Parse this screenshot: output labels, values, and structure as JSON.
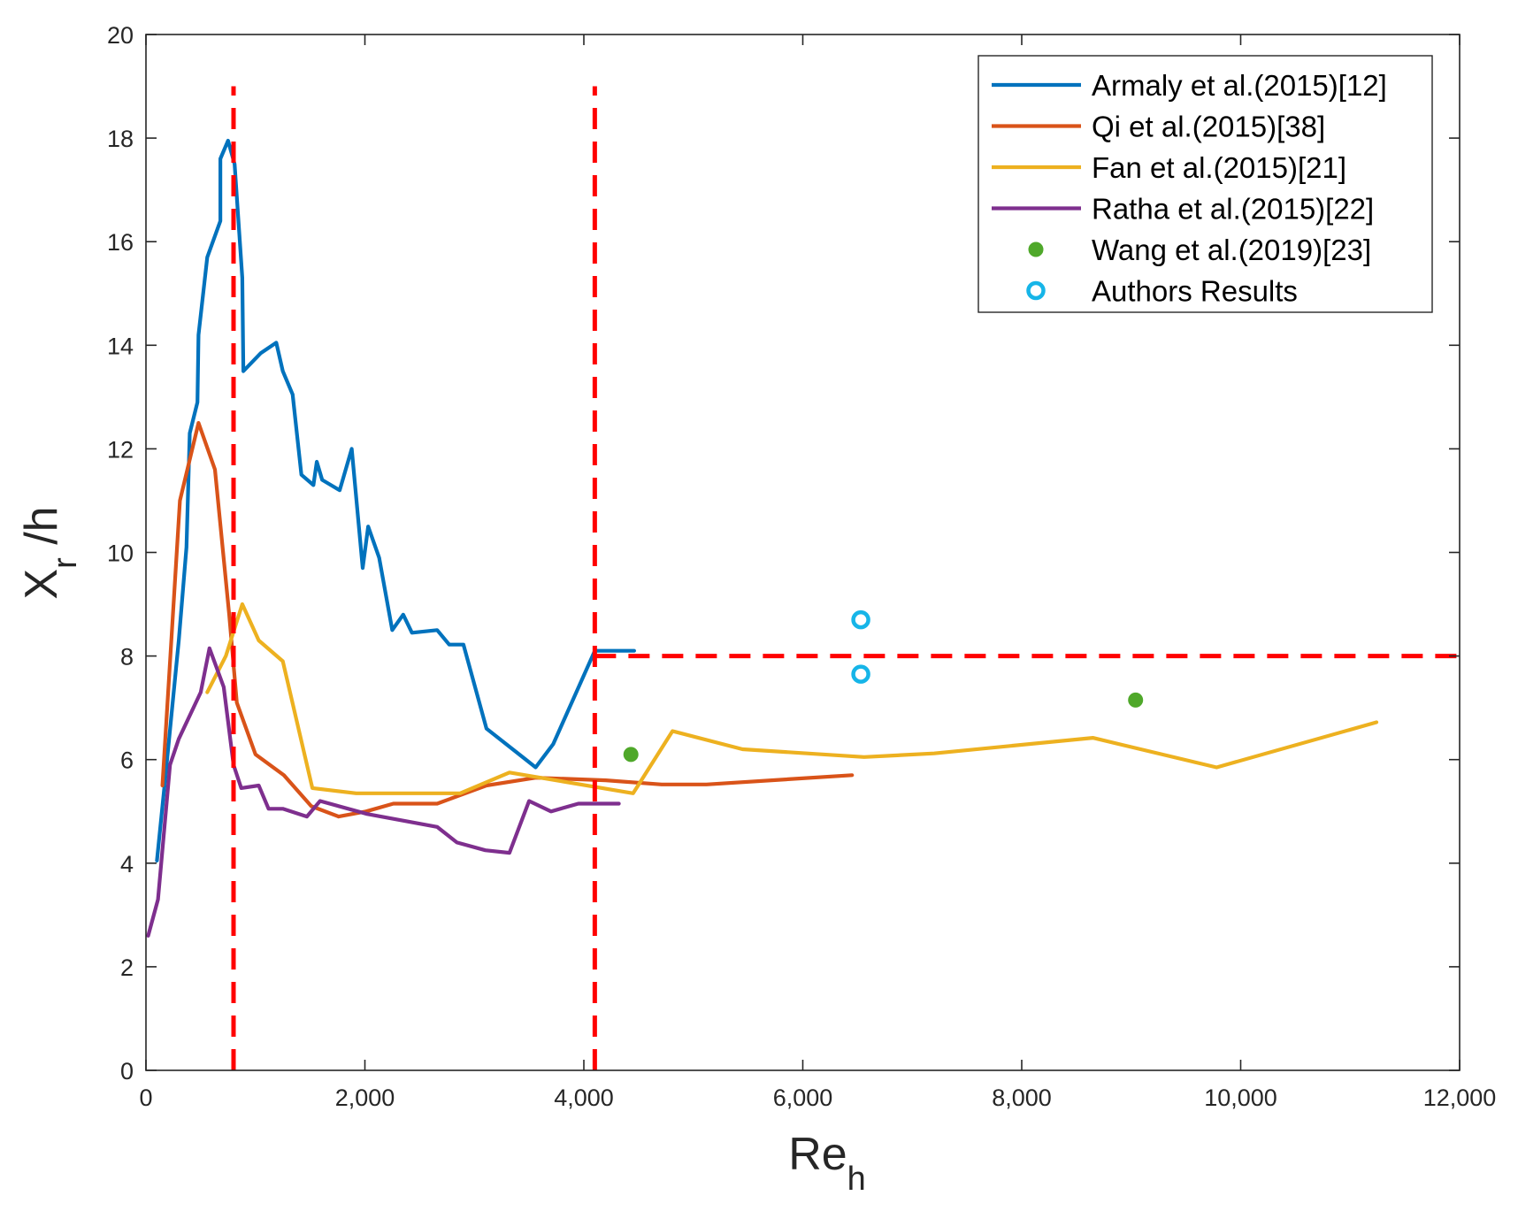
{
  "chart_data": {
    "type": "line",
    "title": "",
    "xlabel": {
      "main": "Re",
      "sub": "h"
    },
    "ylabel": {
      "main": "X",
      "sub": "r",
      "suffix": " /h"
    },
    "xlim": [
      0,
      12000
    ],
    "ylim": [
      0,
      20
    ],
    "xticks": [
      0,
      2000,
      4000,
      6000,
      8000,
      10000,
      12000
    ],
    "xtick_labels": [
      "0",
      "2,000",
      "4,000",
      "6,000",
      "8,000",
      "10,000",
      "12,000"
    ],
    "yticks": [
      0,
      2,
      4,
      6,
      8,
      10,
      12,
      14,
      16,
      18,
      20
    ],
    "ytick_labels": [
      "0",
      "2",
      "4",
      "6",
      "8",
      "10",
      "12",
      "14",
      "16",
      "18",
      "20"
    ],
    "grid": false,
    "legend_position": "top-right",
    "series": [
      {
        "name": "Armaly et al.(2015)[12]",
        "kind": "line",
        "color": "#0072BD",
        "points": [
          [
            100,
            4.05
          ],
          [
            170,
            5.5
          ],
          [
            300,
            8.3
          ],
          [
            370,
            10.1
          ],
          [
            400,
            12.3
          ],
          [
            470,
            12.9
          ],
          [
            480,
            14.2
          ],
          [
            560,
            15.7
          ],
          [
            680,
            16.4
          ],
          [
            680,
            17.6
          ],
          [
            750,
            17.95
          ],
          [
            810,
            17.5
          ],
          [
            880,
            15.3
          ],
          [
            890,
            13.5
          ],
          [
            1050,
            13.85
          ],
          [
            1190,
            14.05
          ],
          [
            1250,
            13.5
          ],
          [
            1340,
            13.05
          ],
          [
            1420,
            11.5
          ],
          [
            1530,
            11.3
          ],
          [
            1560,
            11.75
          ],
          [
            1610,
            11.4
          ],
          [
            1770,
            11.2
          ],
          [
            1880,
            12.0
          ],
          [
            1980,
            9.7
          ],
          [
            2030,
            10.5
          ],
          [
            2130,
            9.9
          ],
          [
            2250,
            8.5
          ],
          [
            2350,
            8.8
          ],
          [
            2430,
            8.45
          ],
          [
            2660,
            8.5
          ],
          [
            2770,
            8.22
          ],
          [
            2900,
            8.22
          ],
          [
            3110,
            6.6
          ],
          [
            3470,
            6.0
          ],
          [
            3560,
            5.85
          ],
          [
            3720,
            6.3
          ],
          [
            4100,
            8.1
          ],
          [
            4460,
            8.1
          ]
        ]
      },
      {
        "name": "Qi et al.(2015)[38]",
        "kind": "line",
        "color": "#D95319",
        "points": [
          [
            150,
            5.5
          ],
          [
            310,
            11.0
          ],
          [
            480,
            12.5
          ],
          [
            630,
            11.6
          ],
          [
            760,
            8.8
          ],
          [
            830,
            7.1
          ],
          [
            1000,
            6.1
          ],
          [
            1260,
            5.7
          ],
          [
            1510,
            5.1
          ],
          [
            1760,
            4.9
          ],
          [
            2010,
            5.0
          ],
          [
            2260,
            5.15
          ],
          [
            2660,
            5.15
          ],
          [
            3110,
            5.5
          ],
          [
            3560,
            5.65
          ],
          [
            4200,
            5.6
          ],
          [
            4710,
            5.52
          ],
          [
            5120,
            5.52
          ],
          [
            6450,
            5.7
          ]
        ]
      },
      {
        "name": "Fan et al.(2015)[21]",
        "kind": "line",
        "color": "#EDB120",
        "points": [
          [
            560,
            7.3
          ],
          [
            730,
            8.0
          ],
          [
            880,
            9.0
          ],
          [
            1030,
            8.3
          ],
          [
            1250,
            7.9
          ],
          [
            1520,
            5.45
          ],
          [
            1920,
            5.35
          ],
          [
            2870,
            5.35
          ],
          [
            3320,
            5.75
          ],
          [
            4450,
            5.35
          ],
          [
            4810,
            6.55
          ],
          [
            5450,
            6.2
          ],
          [
            6560,
            6.05
          ],
          [
            7200,
            6.12
          ],
          [
            8650,
            6.42
          ],
          [
            9780,
            5.85
          ],
          [
            11240,
            6.72
          ]
        ]
      },
      {
        "name": "Ratha et al.(2015)[22]",
        "kind": "line",
        "color": "#7E2F8E",
        "points": [
          [
            20,
            2.6
          ],
          [
            110,
            3.3
          ],
          [
            220,
            5.9
          ],
          [
            300,
            6.4
          ],
          [
            500,
            7.3
          ],
          [
            580,
            8.15
          ],
          [
            710,
            7.4
          ],
          [
            800,
            5.9
          ],
          [
            870,
            5.45
          ],
          [
            1030,
            5.5
          ],
          [
            1120,
            5.05
          ],
          [
            1250,
            5.05
          ],
          [
            1470,
            4.9
          ],
          [
            1590,
            5.2
          ],
          [
            2020,
            4.95
          ],
          [
            2660,
            4.7
          ],
          [
            2840,
            4.4
          ],
          [
            3100,
            4.25
          ],
          [
            3320,
            4.2
          ],
          [
            3500,
            5.2
          ],
          [
            3700,
            5.0
          ],
          [
            3950,
            5.15
          ],
          [
            4320,
            5.15
          ]
        ]
      },
      {
        "name": "Wang et al.(2019)[23]",
        "kind": "scatter",
        "color": "#4FA82A",
        "marker": "filled-circle",
        "points": [
          [
            4430,
            6.1
          ],
          [
            9040,
            7.15
          ]
        ]
      },
      {
        "name": "Authors Results",
        "kind": "scatter",
        "color": "#16B5E8",
        "marker": "open-circle",
        "points": [
          [
            6530,
            8.7
          ],
          [
            6530,
            7.65
          ]
        ]
      }
    ],
    "reference_lines": [
      {
        "kind": "vertical-dashed",
        "color": "#FF0000",
        "x": 800,
        "y_range": [
          0,
          19
        ]
      },
      {
        "kind": "vertical-dashed",
        "color": "#FF0000",
        "x": 4100,
        "y_range": [
          0,
          19
        ]
      },
      {
        "kind": "horizontal-dashed",
        "color": "#FF0000",
        "y": 8,
        "x_range": [
          4100,
          12000
        ]
      }
    ]
  }
}
